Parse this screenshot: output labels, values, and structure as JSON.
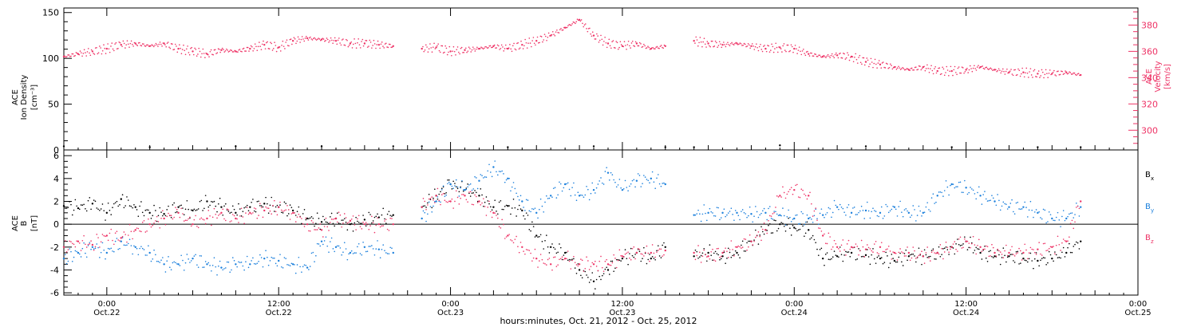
{
  "chart_data": [
    {
      "type": "scatter",
      "title": "",
      "x_range_hours": [
        -3,
        72
      ],
      "left_axis": {
        "label_lines": [
          "ACE",
          "Ion Density"
        ],
        "unit": "[cm⁻³]",
        "ylim": [
          0,
          155
        ],
        "ticks": [
          0,
          50,
          100,
          150
        ],
        "tick_labels": [
          "0",
          "50",
          "100",
          "150"
        ]
      },
      "right_axis": {
        "label_lines": [
          "ACE",
          "Velocity"
        ],
        "unit": "[km/s]",
        "ylim": [
          285,
          393
        ],
        "ticks": [
          300,
          320,
          340,
          360,
          380
        ],
        "tick_labels": [
          "300",
          "320",
          "340",
          "360",
          "380"
        ],
        "color": "#ee3366"
      },
      "series": [
        {
          "label": "",
          "axis": "right",
          "color": "#ee3366",
          "x": [
            -3,
            -2,
            -1,
            0,
            1,
            2,
            3,
            4,
            5,
            6,
            7,
            8,
            9,
            10,
            11,
            12,
            13,
            14,
            15,
            16,
            17,
            18,
            19,
            20,
            22,
            23,
            24,
            25,
            26,
            27,
            28,
            29,
            30,
            31,
            32,
            33,
            34,
            35,
            36,
            37,
            38,
            39,
            41,
            42,
            43,
            44,
            45,
            46,
            47,
            48,
            49,
            50,
            51,
            52,
            53,
            54,
            55,
            56,
            57,
            58,
            59,
            60,
            61,
            62,
            63,
            64,
            65,
            66,
            67,
            68
          ],
          "y": [
            356,
            358,
            360,
            362,
            365,
            366,
            364,
            366,
            362,
            360,
            358,
            361,
            360,
            362,
            365,
            363,
            368,
            370,
            369,
            368,
            366,
            366,
            365,
            364,
            362,
            363,
            360,
            361,
            362,
            364,
            362,
            365,
            368,
            372,
            378,
            384,
            372,
            366,
            364,
            366,
            362,
            364,
            368,
            366,
            365,
            366,
            364,
            362,
            363,
            362,
            358,
            356,
            357,
            356,
            352,
            350,
            348,
            346,
            348,
            345,
            345,
            346,
            348,
            346,
            344,
            344,
            343,
            343,
            344,
            342
          ]
        },
        {
          "label": "",
          "axis": "left",
          "color": "#000000",
          "x": [
            -3,
            3,
            9,
            15,
            20,
            22,
            28,
            34,
            39,
            41,
            47,
            53,
            59,
            65,
            68
          ],
          "y": [
            4,
            3,
            4,
            4,
            4,
            4,
            3,
            4,
            3,
            3,
            5,
            4,
            3,
            3,
            3
          ]
        }
      ]
    },
    {
      "type": "scatter",
      "title": "",
      "x_range_hours": [
        -3,
        72
      ],
      "y_axis": {
        "label_lines": [
          "ACE",
          "B"
        ],
        "unit": "[nT]",
        "ylim": [
          -6.2,
          6.5
        ],
        "ticks": [
          -6,
          -4,
          -2,
          0,
          2,
          4,
          6
        ],
        "tick_labels": [
          "-6",
          "-4",
          "-2",
          "0",
          "2",
          "4",
          "6"
        ]
      },
      "zero_line": true,
      "series": [
        {
          "name": "Bx",
          "name_main": "B",
          "name_sub": "x",
          "color": "#000000",
          "x": [
            -3,
            -2,
            -1,
            0,
            1,
            2,
            3,
            4,
            5,
            6,
            7,
            8,
            9,
            10,
            11,
            12,
            13,
            14,
            15,
            16,
            17,
            18,
            19,
            20,
            22,
            23,
            24,
            25,
            26,
            27,
            28,
            29,
            30,
            31,
            32,
            33,
            34,
            35,
            36,
            37,
            38,
            39,
            41,
            42,
            43,
            44,
            45,
            46,
            47,
            48,
            49,
            50,
            51,
            52,
            53,
            54,
            55,
            56,
            57,
            58,
            59,
            60,
            61,
            62,
            63,
            64,
            65,
            66,
            67,
            68
          ],
          "y": [
            1.6,
            1.4,
            1.8,
            1.0,
            2.2,
            1.5,
            1.0,
            0.9,
            1.5,
            1.2,
            2.0,
            1.5,
            1.0,
            1.5,
            1.8,
            1.5,
            1.2,
            0.5,
            0.2,
            0.5,
            0.0,
            0.4,
            0.6,
            0.8,
            1.5,
            2.5,
            3.5,
            3.0,
            2.5,
            1.5,
            1.6,
            1.2,
            -1.0,
            -2.0,
            -2.5,
            -4.0,
            -5.0,
            -4.0,
            -3.0,
            -2.5,
            -3.0,
            -2.0,
            -2.8,
            -2.5,
            -2.8,
            -2.5,
            -1.5,
            -0.5,
            0.0,
            -0.3,
            -0.5,
            -3.0,
            -2.8,
            -2.5,
            -2.7,
            -3.0,
            -3.2,
            -2.8,
            -2.8,
            -2.5,
            -2.0,
            -1.5,
            -2.5,
            -2.8,
            -2.8,
            -3.0,
            -3.2,
            -3.0,
            -2.5,
            -1.5
          ]
        },
        {
          "name": "By",
          "name_main": "B",
          "name_sub": "y",
          "color": "#1a7fdc",
          "x": [
            -3,
            -2,
            -1,
            0,
            1,
            2,
            3,
            4,
            5,
            6,
            7,
            8,
            9,
            10,
            11,
            12,
            13,
            14,
            15,
            16,
            17,
            18,
            19,
            20,
            22,
            23,
            24,
            25,
            26,
            27,
            28,
            29,
            30,
            31,
            32,
            33,
            34,
            35,
            36,
            37,
            38,
            39,
            41,
            42,
            43,
            44,
            45,
            46,
            47,
            48,
            49,
            50,
            51,
            52,
            53,
            54,
            55,
            56,
            57,
            58,
            59,
            60,
            61,
            62,
            63,
            64,
            65,
            66,
            67,
            68
          ],
          "y": [
            -3.0,
            -2.5,
            -2.0,
            -2.5,
            -1.5,
            -2.0,
            -2.5,
            -3.5,
            -3.5,
            -3.0,
            -3.5,
            -3.8,
            -3.5,
            -3.5,
            -3.0,
            -3.2,
            -3.5,
            -3.8,
            -1.5,
            -2.0,
            -2.5,
            -2.0,
            -2.2,
            -2.5,
            0.5,
            2.0,
            3.5,
            3.0,
            3.8,
            5.0,
            4.0,
            2.0,
            1.0,
            2.5,
            3.5,
            2.5,
            3.0,
            4.5,
            3.0,
            3.8,
            4.0,
            3.5,
            0.8,
            1.0,
            1.0,
            1.0,
            0.9,
            1.0,
            0.8,
            0.5,
            0.5,
            0.8,
            1.5,
            1.0,
            1.2,
            1.0,
            1.5,
            1.0,
            1.0,
            2.5,
            3.5,
            3.2,
            2.5,
            2.0,
            1.5,
            1.5,
            1.0,
            0.5,
            0.5,
            1.5
          ]
        },
        {
          "name": "Bz",
          "name_main": "B",
          "name_sub": "z",
          "color": "#ee3366",
          "x": [
            -3,
            -2,
            -1,
            0,
            1,
            2,
            3,
            4,
            5,
            6,
            7,
            8,
            9,
            10,
            11,
            12,
            13,
            14,
            15,
            16,
            17,
            18,
            19,
            20,
            22,
            23,
            24,
            25,
            26,
            27,
            28,
            29,
            30,
            31,
            32,
            33,
            34,
            35,
            36,
            37,
            38,
            39,
            41,
            42,
            43,
            44,
            45,
            46,
            47,
            48,
            49,
            50,
            51,
            52,
            53,
            54,
            55,
            56,
            57,
            58,
            59,
            60,
            61,
            62,
            63,
            64,
            65,
            66,
            67,
            68
          ],
          "y": [
            -2.0,
            -1.5,
            -1.8,
            -1.0,
            -1.2,
            -0.5,
            0.0,
            0.5,
            1.0,
            0.0,
            0.5,
            1.0,
            0.5,
            1.0,
            1.2,
            1.5,
            1.0,
            0.0,
            -0.5,
            0.5,
            0.3,
            0.0,
            0.0,
            0.0,
            1.5,
            2.5,
            2.0,
            2.5,
            2.0,
            1.0,
            -1.0,
            -2.0,
            -3.0,
            -3.5,
            -3.0,
            -3.5,
            -3.5,
            -3.5,
            -2.8,
            -2.5,
            -2.5,
            -2.3,
            -2.5,
            -2.8,
            -2.5,
            -2.0,
            -1.5,
            -0.5,
            2.5,
            3.0,
            2.5,
            -1.0,
            -2.0,
            -2.0,
            -2.2,
            -2.0,
            -2.5,
            -2.5,
            -2.8,
            -2.5,
            -2.0,
            -1.5,
            -2.0,
            -2.5,
            -2.5,
            -2.5,
            -2.2,
            -2.0,
            -1.5,
            2.0
          ]
        }
      ]
    }
  ],
  "x_axis": {
    "tick_hours": [
      0,
      12,
      24,
      36,
      48,
      60,
      72
    ],
    "tick_time_labels": [
      "0:00",
      "12:00",
      "0:00",
      "12:00",
      "0:00",
      "12:00",
      "0:00"
    ],
    "tick_date_labels": [
      "Oct.22",
      "Oct.22",
      "Oct.23",
      "Oct.23",
      "Oct.24",
      "Oct.24",
      "Oct.25"
    ],
    "label": "hours:minutes, Oct. 21, 2012 - Oct. 25, 2012"
  }
}
